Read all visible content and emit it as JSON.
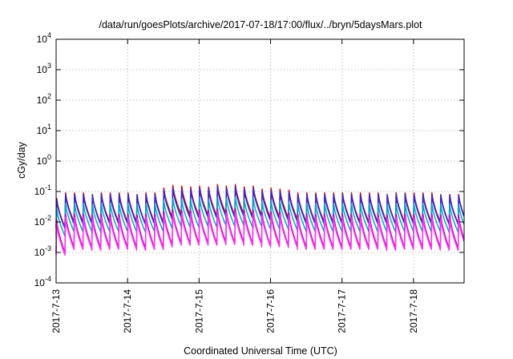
{
  "chart_data": {
    "type": "line",
    "title": "/data/run/goesPlots/archive/2017-07-18/17:00/flux/../bryn/5daysMars.plot",
    "xlabel": "Coordinated Universal Time (UTC)",
    "ylabel": "cGy/day",
    "yscale": "log",
    "ylim": [
      0.0001,
      10000
    ],
    "y_ticks": [
      {
        "value": 0.0001,
        "base": "10",
        "exp": "-4"
      },
      {
        "value": 0.001,
        "base": "10",
        "exp": "-3"
      },
      {
        "value": 0.01,
        "base": "10",
        "exp": "-2"
      },
      {
        "value": 0.1,
        "base": "10",
        "exp": "-1"
      },
      {
        "value": 1,
        "base": "10",
        "exp": "0"
      },
      {
        "value": 10,
        "base": "10",
        "exp": "1"
      },
      {
        "value": 100,
        "base": "10",
        "exp": "2"
      },
      {
        "value": 1000,
        "base": "10",
        "exp": "3"
      },
      {
        "value": 10000,
        "base": "10",
        "exp": "4"
      }
    ],
    "xlim": [
      "2017-07-13T00:00",
      "2017-07-18T17:00"
    ],
    "x_ticks": [
      "2017-7-13",
      "2017-7-14",
      "2017-7-15",
      "2017-7-16",
      "2017-7-17",
      "2017-7-18"
    ],
    "grid": true,
    "legend": "none",
    "sawtooth_period_hours": 3,
    "series": [
      {
        "color": "#dd0000",
        "peak_values": [
          0.06,
          0.09,
          0.09,
          0.09,
          0.08,
          0.09,
          0.09,
          0.09,
          0.09,
          0.08,
          0.09,
          0.09,
          0.13,
          0.16,
          0.15,
          0.14,
          0.15,
          0.14,
          0.17,
          0.15,
          0.17,
          0.14,
          0.15,
          0.12,
          0.13,
          0.12,
          0.11,
          0.09,
          0.09,
          0.09,
          0.09,
          0.09,
          0.09,
          0.09,
          0.09,
          0.09,
          0.09,
          0.08,
          0.09,
          0.09,
          0.09,
          0.09,
          0.09,
          0.08,
          0.08,
          0.08
        ],
        "trough_ratio": 0.11
      },
      {
        "color": "#2a2ad6",
        "peak_values": [
          0.055,
          0.08,
          0.08,
          0.08,
          0.075,
          0.08,
          0.08,
          0.08,
          0.08,
          0.075,
          0.08,
          0.08,
          0.11,
          0.13,
          0.12,
          0.12,
          0.13,
          0.12,
          0.14,
          0.13,
          0.14,
          0.12,
          0.13,
          0.1,
          0.11,
          0.1,
          0.095,
          0.08,
          0.08,
          0.08,
          0.08,
          0.08,
          0.08,
          0.08,
          0.08,
          0.08,
          0.08,
          0.075,
          0.08,
          0.08,
          0.08,
          0.08,
          0.08,
          0.075,
          0.075,
          0.075
        ],
        "trough_ratio": 0.11
      },
      {
        "color": "#00a8c8",
        "peak_values": [
          0.028,
          0.04,
          0.04,
          0.04,
          0.038,
          0.04,
          0.04,
          0.04,
          0.04,
          0.038,
          0.04,
          0.04,
          0.05,
          0.06,
          0.055,
          0.055,
          0.06,
          0.055,
          0.065,
          0.06,
          0.065,
          0.055,
          0.06,
          0.048,
          0.05,
          0.048,
          0.045,
          0.04,
          0.04,
          0.04,
          0.04,
          0.04,
          0.04,
          0.04,
          0.04,
          0.04,
          0.04,
          0.038,
          0.04,
          0.04,
          0.04,
          0.04,
          0.04,
          0.038,
          0.038,
          0.038
        ],
        "trough_ratio": 0.12
      },
      {
        "color": "#c000c0",
        "peak_values": [
          0.012,
          0.018,
          0.018,
          0.018,
          0.017,
          0.018,
          0.018,
          0.018,
          0.018,
          0.017,
          0.018,
          0.018,
          0.022,
          0.025,
          0.024,
          0.024,
          0.025,
          0.024,
          0.027,
          0.025,
          0.027,
          0.024,
          0.025,
          0.021,
          0.022,
          0.021,
          0.02,
          0.018,
          0.018,
          0.018,
          0.018,
          0.018,
          0.018,
          0.018,
          0.018,
          0.018,
          0.018,
          0.017,
          0.018,
          0.018,
          0.018,
          0.018,
          0.018,
          0.017,
          0.017,
          0.017
        ],
        "trough_ratio": 0.08
      },
      {
        "color": "#ff33ee",
        "peak_values": [
          0.009,
          0.014,
          0.014,
          0.014,
          0.013,
          0.014,
          0.014,
          0.014,
          0.014,
          0.013,
          0.014,
          0.014,
          0.017,
          0.02,
          0.019,
          0.019,
          0.02,
          0.019,
          0.021,
          0.02,
          0.021,
          0.019,
          0.02,
          0.017,
          0.017,
          0.017,
          0.016,
          0.014,
          0.014,
          0.014,
          0.014,
          0.014,
          0.014,
          0.014,
          0.014,
          0.014,
          0.014,
          0.013,
          0.014,
          0.014,
          0.014,
          0.014,
          0.014,
          0.013,
          0.013,
          0.013
        ],
        "trough_ratio": 0.09
      }
    ]
  }
}
